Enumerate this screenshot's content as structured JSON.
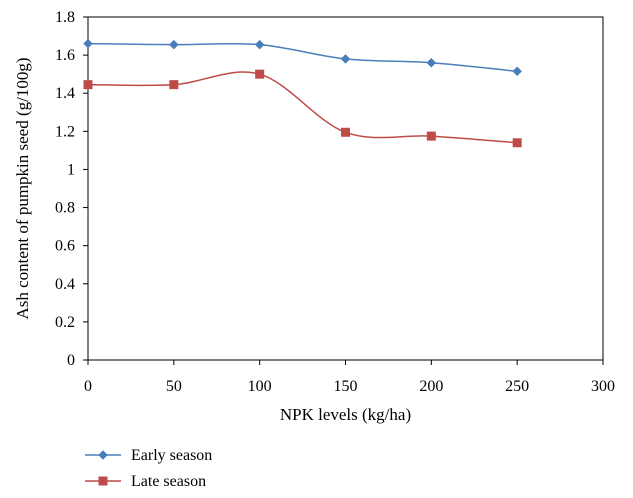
{
  "chart_data": {
    "type": "line",
    "title": "",
    "xlabel": "NPK levels (kg/ha)",
    "ylabel": "Ash content of pumpkin seed (g/100g)",
    "xlim": [
      0,
      300
    ],
    "ylim": [
      0,
      1.8
    ],
    "x_ticks": [
      "0",
      "50",
      "100",
      "150",
      "200",
      "250",
      "300"
    ],
    "y_ticks": [
      "0",
      "0.2",
      "0.4",
      "0.6",
      "0.8",
      "1",
      "1.2",
      "1.4",
      "1.6",
      "1.8"
    ],
    "x": [
      0,
      50,
      100,
      150,
      200,
      250
    ],
    "series": [
      {
        "name": "Early season",
        "values": [
          1.66,
          1.655,
          1.655,
          1.58,
          1.56,
          1.515
        ],
        "color": "#4a7ebb",
        "marker": "diamond"
      },
      {
        "name": "Late season",
        "values": [
          1.445,
          1.445,
          1.5,
          1.195,
          1.175,
          1.14
        ],
        "color": "#be4b48",
        "marker": "square"
      }
    ],
    "grid": false,
    "smooth": true,
    "legend": "bottom-left"
  }
}
